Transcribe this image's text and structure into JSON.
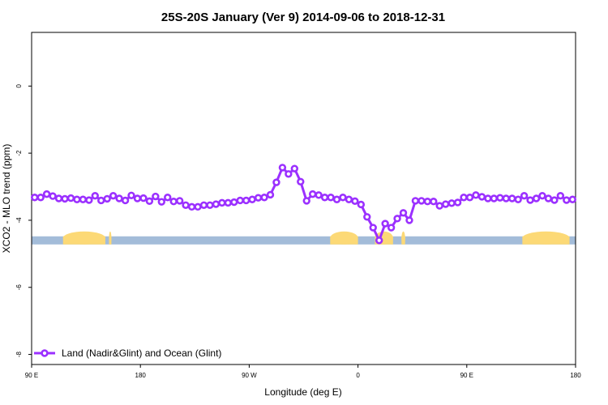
{
  "chart_data": {
    "type": "line",
    "title": "25S-20S January (Ver 9)   2014-09-06 to 2018-12-31",
    "xlabel": "Longitude (deg E)",
    "ylabel": "XCO2 - MLO trend (ppm)",
    "x_ticks": [
      {
        "value": 90,
        "label": "90 E"
      },
      {
        "value": 180,
        "label": "180"
      },
      {
        "value": 270,
        "label": "90 W"
      },
      {
        "value": 360,
        "label": "0"
      },
      {
        "value": 450,
        "label": "90 E"
      },
      {
        "value": 540,
        "label": "180"
      }
    ],
    "y_ticks": [
      {
        "value": 0,
        "label": "0"
      },
      {
        "value": -2,
        "label": "-2"
      },
      {
        "value": -4,
        "label": "-4"
      },
      {
        "value": -6,
        "label": "-6"
      },
      {
        "value": -8,
        "label": "-8"
      }
    ],
    "xlim": [
      90,
      540
    ],
    "ylim": [
      -8.3,
      1.6
    ],
    "grid": false,
    "legend_position": "bottom-left",
    "series": [
      {
        "name": "Land (Nadir&Glint) and Ocean (Glint)",
        "color": "#9b30ff",
        "x": [
          92.5,
          97.5,
          102.5,
          107.5,
          112.5,
          117.5,
          122.5,
          127.5,
          132.5,
          137.5,
          142.5,
          147.5,
          152.5,
          157.5,
          162.5,
          167.5,
          172.5,
          177.5,
          182.5,
          187.5,
          192.5,
          197.5,
          202.5,
          207.5,
          212.5,
          217.5,
          222.5,
          227.5,
          232.5,
          237.5,
          242.5,
          247.5,
          252.5,
          257.5,
          262.5,
          267.5,
          272.5,
          277.5,
          282.5,
          287.5,
          292.5,
          297.5,
          302.5,
          307.5,
          312.5,
          317.5,
          322.5,
          327.5,
          332.5,
          337.5,
          342.5,
          347.5,
          352.5,
          357.5,
          362.5,
          367.5,
          372.5,
          377.5,
          382.5,
          387.5,
          392.5,
          397.5,
          402.5,
          407.5,
          412.5,
          417.5,
          422.5,
          427.5,
          432.5,
          437.5,
          442.5,
          447.5,
          452.5,
          457.5,
          462.5,
          467.5,
          472.5,
          477.5,
          482.5,
          487.5,
          492.5,
          497.5,
          502.5,
          507.5,
          512.5,
          517.5,
          522.5,
          527.5,
          532.5,
          537.5
        ],
        "values": [
          -3.32,
          -3.32,
          -3.22,
          -3.28,
          -3.35,
          -3.36,
          -3.34,
          -3.38,
          -3.38,
          -3.4,
          -3.27,
          -3.41,
          -3.36,
          -3.27,
          -3.35,
          -3.41,
          -3.26,
          -3.35,
          -3.34,
          -3.43,
          -3.29,
          -3.45,
          -3.32,
          -3.44,
          -3.42,
          -3.55,
          -3.6,
          -3.6,
          -3.55,
          -3.55,
          -3.52,
          -3.48,
          -3.48,
          -3.46,
          -3.41,
          -3.41,
          -3.38,
          -3.33,
          -3.32,
          -3.24,
          -2.87,
          -2.43,
          -2.62,
          -2.46,
          -2.85,
          -3.42,
          -3.22,
          -3.25,
          -3.32,
          -3.32,
          -3.38,
          -3.32,
          -3.38,
          -3.43,
          -3.53,
          -3.9,
          -4.22,
          -4.6,
          -4.1,
          -4.22,
          -3.95,
          -3.78,
          -4.0,
          -3.42,
          -3.42,
          -3.44,
          -3.44,
          -3.57,
          -3.52,
          -3.49,
          -3.47,
          -3.32,
          -3.32,
          -3.25,
          -3.3,
          -3.35,
          -3.35,
          -3.33,
          -3.35,
          -3.35,
          -3.38,
          -3.27,
          -3.4,
          -3.35,
          -3.27,
          -3.35,
          -3.4,
          -3.27,
          -3.4,
          -3.38
        ]
      }
    ],
    "surface_band": {
      "y_value": -4.6,
      "ocean_color": "#a3bcd9",
      "land_color": "#fcd976",
      "land_segments": [
        [
          116,
          151
        ],
        [
          154,
          156
        ],
        [
          337,
          360
        ],
        [
          374,
          389
        ],
        [
          396,
          399
        ],
        [
          496,
          535
        ]
      ]
    }
  }
}
